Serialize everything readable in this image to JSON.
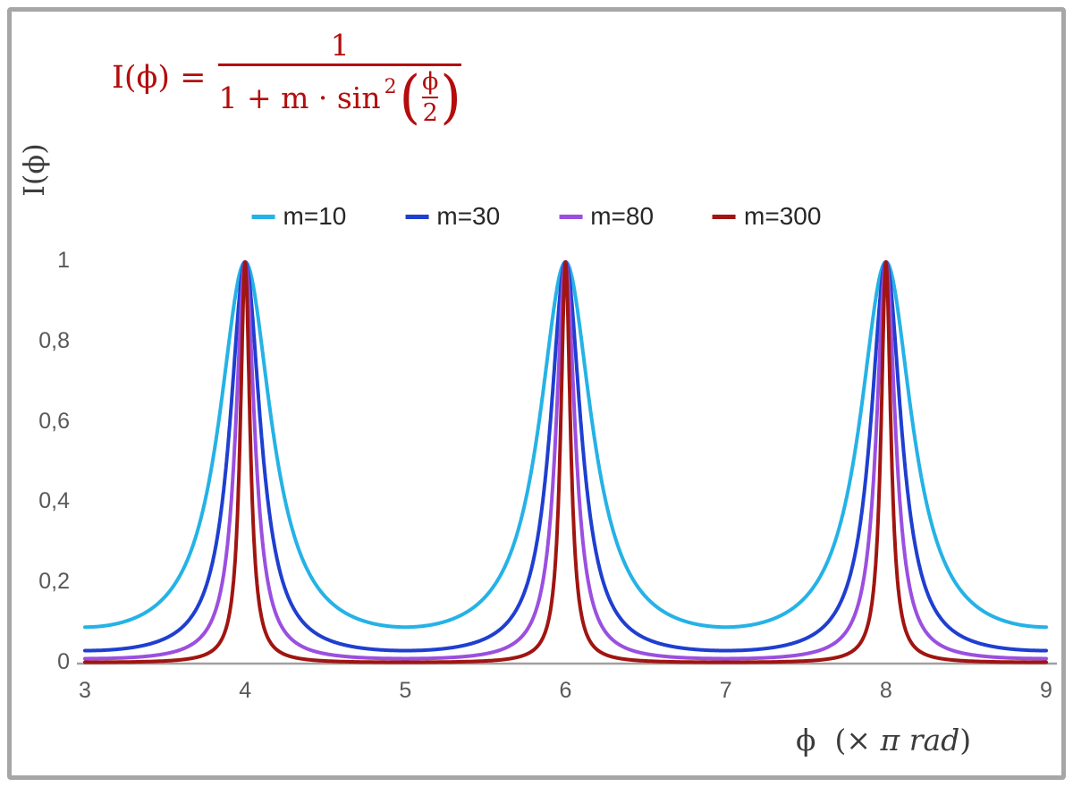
{
  "chart_data": {
    "type": "line",
    "function": "I(phi) = 1 / (1 + m * sin^2(phi/2)); x axis is phi in units of pi rad; peaks of height 1 at phi = 4, 6, 8 (x pi rad)",
    "formula": {
      "lhs": "I(ϕ) =",
      "numerator": "1",
      "den_prefix": "1 + m · sin",
      "den_sup": "2",
      "open_paren": "(",
      "inner_num": "ϕ",
      "inner_den": "2",
      "close_paren": ")",
      "color": "#b30d0d"
    },
    "ylabel": "I(ϕ)",
    "xlabel": {
      "phi": "ϕ",
      "open": "(×",
      "units": "π rad",
      "close": ")"
    },
    "x_axis": {
      "min": 3,
      "max": 9
    },
    "y_axis": {
      "min": 0,
      "max": 1
    },
    "x_ticks": [
      "3",
      "4",
      "5",
      "6",
      "7",
      "8",
      "9"
    ],
    "y_ticks": [
      "0",
      "0,2",
      "0,4",
      "0,6",
      "0,8",
      "1"
    ],
    "peaks_at_x": [
      4,
      6,
      8
    ],
    "peak_value": 1,
    "legend_position": "top-center",
    "grid": false,
    "axis_color": "#a0a0a0",
    "series": [
      {
        "name": "m=10",
        "m": 10,
        "color": "#25b2e6"
      },
      {
        "name": "m=30",
        "m": 30,
        "color": "#1f3fd0"
      },
      {
        "name": "m=80",
        "m": 80,
        "color": "#9b4fe0"
      },
      {
        "name": "m=300",
        "m": 300,
        "color": "#a01511"
      }
    ]
  }
}
